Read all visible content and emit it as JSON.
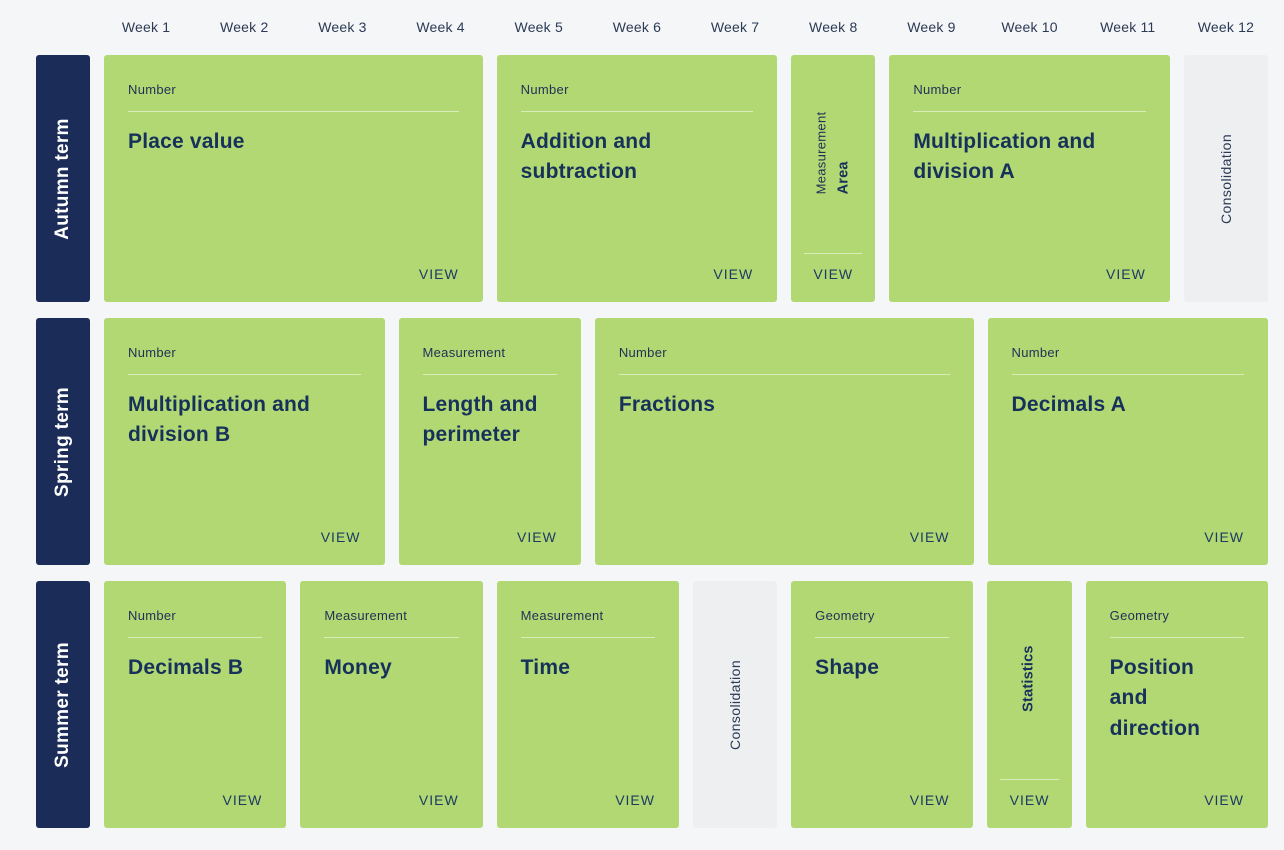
{
  "colors": {
    "navy": "#1b2c58",
    "green": "#b2d873",
    "gray_card": "#edeff1",
    "background": "#f5f6f8",
    "text_navy": "#16315a"
  },
  "view_label": "VIEW",
  "weeks": [
    "Week 1",
    "Week 2",
    "Week 3",
    "Week 4",
    "Week 5",
    "Week 6",
    "Week 7",
    "Week 8",
    "Week 9",
    "Week 10",
    "Week 11",
    "Week 12"
  ],
  "terms": [
    {
      "label": "Autumn term",
      "blocks": [
        {
          "category": "Number",
          "title": "Place value",
          "weeks": 4
        },
        {
          "category": "Number",
          "title": "Addition and subtraction",
          "weeks": 3
        },
        {
          "category": "Measurement",
          "title": "Area",
          "weeks": 1
        },
        {
          "category": "Number",
          "title": "Multiplication and division A",
          "weeks": 3
        },
        {
          "category": "",
          "title": "Consolidation",
          "weeks": 1
        }
      ]
    },
    {
      "label": "Spring term",
      "blocks": [
        {
          "category": "Number",
          "title": "Multiplication and division B",
          "weeks": 3
        },
        {
          "category": "Measurement",
          "title": "Length and perimeter",
          "weeks": 2
        },
        {
          "category": "Number",
          "title": "Fractions",
          "weeks": 4
        },
        {
          "category": "Number",
          "title": "Decimals A",
          "weeks": 3
        }
      ]
    },
    {
      "label": "Summer term",
      "blocks": [
        {
          "category": "Number",
          "title": "Decimals B",
          "weeks": 2
        },
        {
          "category": "Measurement",
          "title": "Money",
          "weeks": 2
        },
        {
          "category": "Measurement",
          "title": "Time",
          "weeks": 2
        },
        {
          "category": "",
          "title": "Consolidation",
          "weeks": 1
        },
        {
          "category": "Geometry",
          "title": "Shape",
          "weeks": 2
        },
        {
          "category": "",
          "title": "Statistics",
          "weeks": 1
        },
        {
          "category": "Geometry",
          "title": "Position and direction",
          "weeks": 2
        }
      ]
    }
  ]
}
